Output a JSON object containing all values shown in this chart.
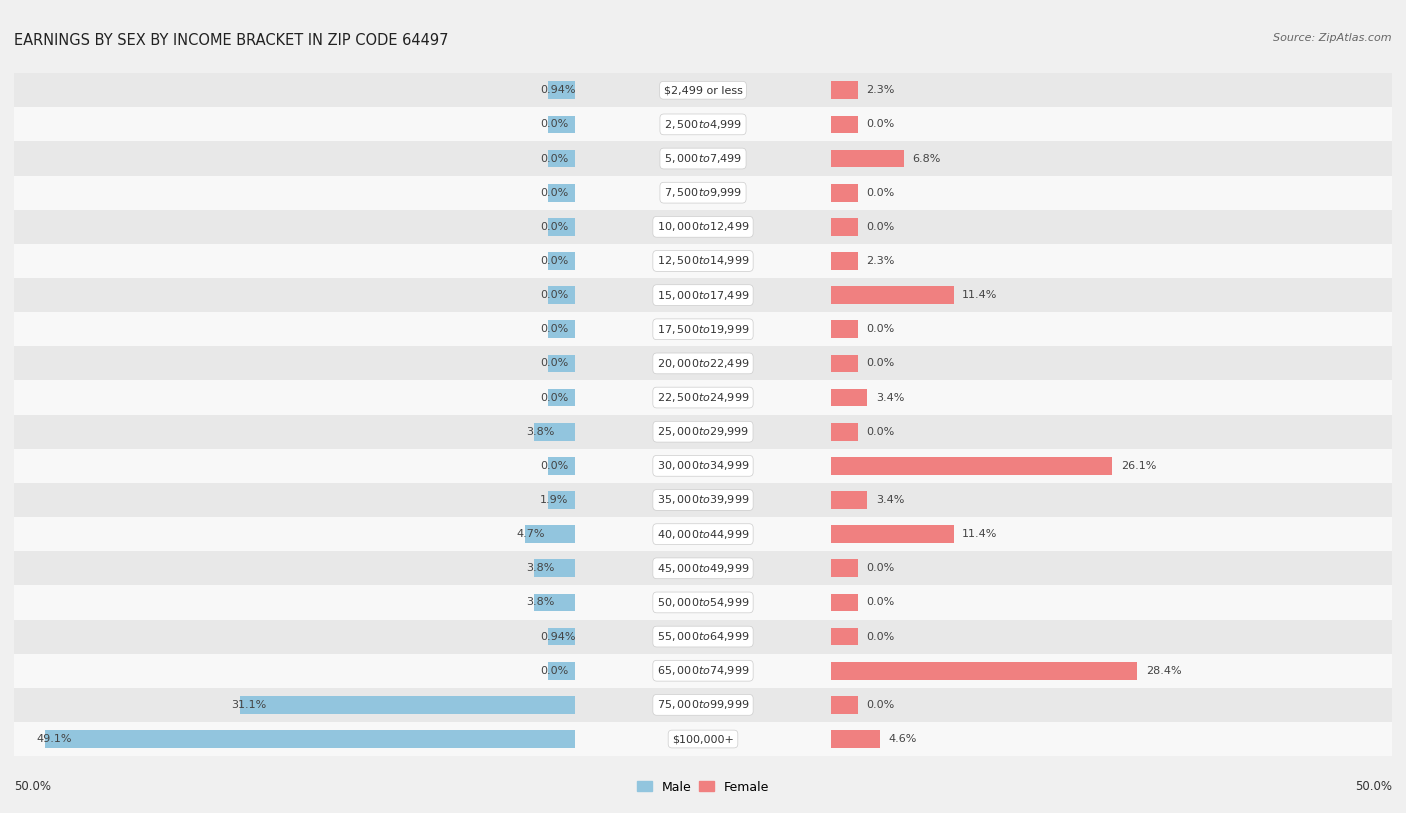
{
  "title": "EARNINGS BY SEX BY INCOME BRACKET IN ZIP CODE 64497",
  "source": "Source: ZipAtlas.com",
  "categories": [
    "$2,499 or less",
    "$2,500 to $4,999",
    "$5,000 to $7,499",
    "$7,500 to $9,999",
    "$10,000 to $12,499",
    "$12,500 to $14,999",
    "$15,000 to $17,499",
    "$17,500 to $19,999",
    "$20,000 to $22,499",
    "$22,500 to $24,999",
    "$25,000 to $29,999",
    "$30,000 to $34,999",
    "$35,000 to $39,999",
    "$40,000 to $44,999",
    "$45,000 to $49,999",
    "$50,000 to $54,999",
    "$55,000 to $64,999",
    "$65,000 to $74,999",
    "$75,000 to $99,999",
    "$100,000+"
  ],
  "male_values": [
    0.94,
    0.0,
    0.0,
    0.0,
    0.0,
    0.0,
    0.0,
    0.0,
    0.0,
    0.0,
    3.8,
    0.0,
    1.9,
    4.7,
    3.8,
    3.8,
    0.94,
    0.0,
    31.1,
    49.1
  ],
  "female_values": [
    2.3,
    0.0,
    6.8,
    0.0,
    0.0,
    2.3,
    11.4,
    0.0,
    0.0,
    3.4,
    0.0,
    26.1,
    3.4,
    11.4,
    0.0,
    0.0,
    0.0,
    28.4,
    0.0,
    4.6
  ],
  "male_color": "#92c5de",
  "female_color": "#f08080",
  "background_color": "#f0f0f0",
  "row_even_color": "#e8e8e8",
  "row_odd_color": "#f8f8f8",
  "legend_male": "Male",
  "legend_female": "Female",
  "max_val": 52.0,
  "min_stub": 2.5,
  "label_fontsize": 8.0,
  "cat_fontsize": 8.0,
  "title_fontsize": 10.5,
  "source_fontsize": 8.0
}
